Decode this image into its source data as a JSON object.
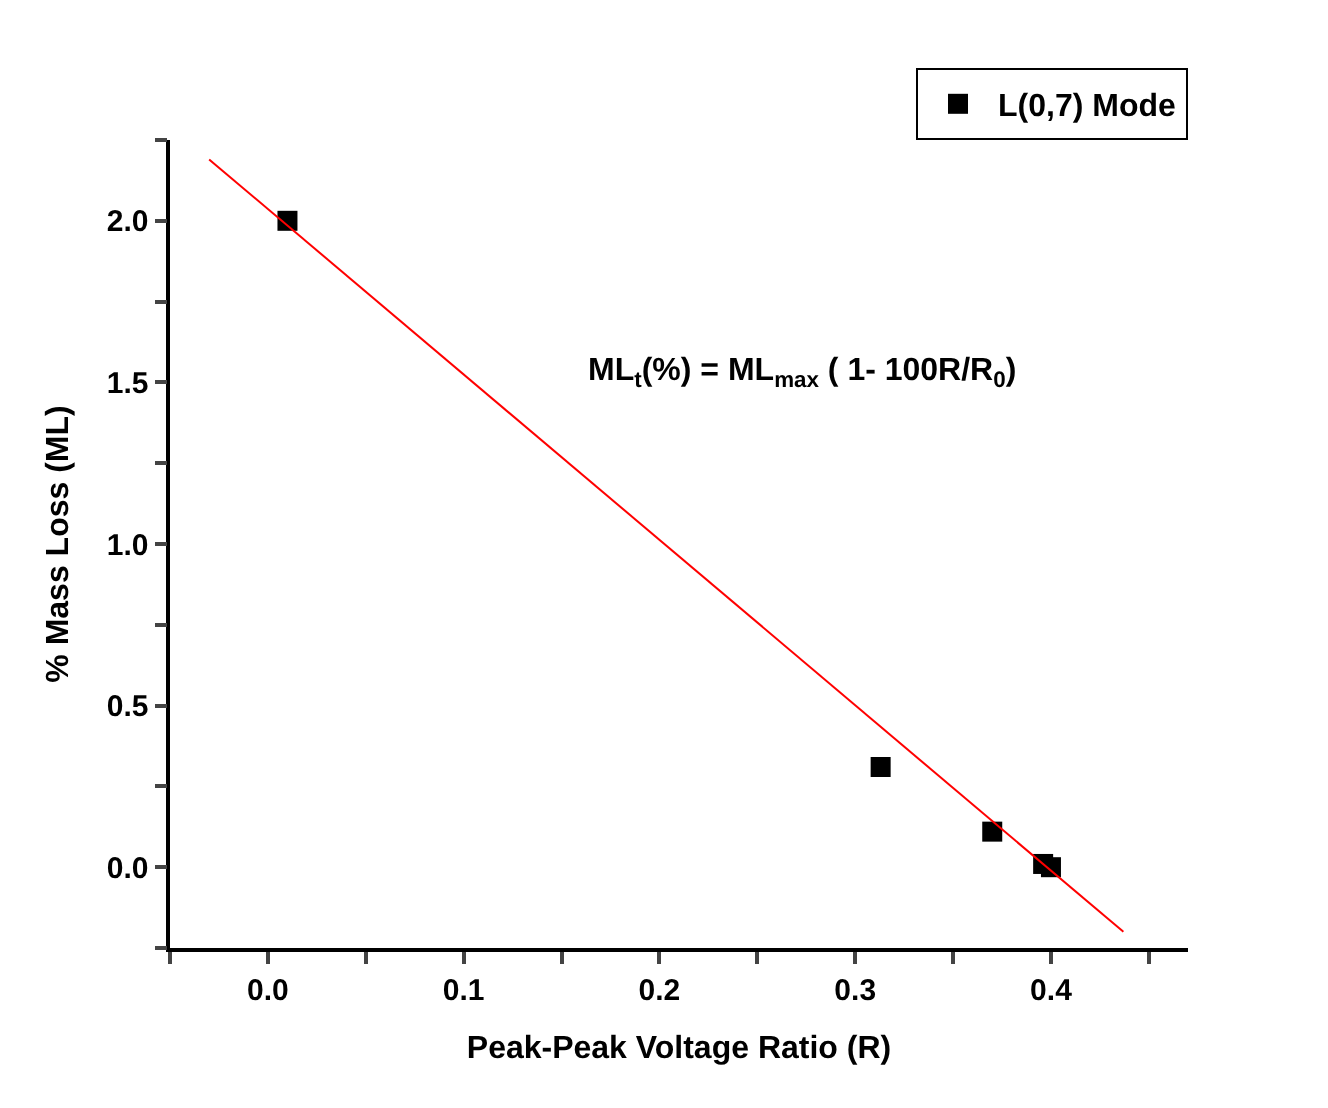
{
  "chart_data": {
    "type": "scatter",
    "xlabel": "Peak-Peak Voltage Ratio (R)",
    "ylabel": "% Mass Loss (ML)",
    "series": [
      {
        "name": "L(0,7) Mode",
        "color": "#000000",
        "marker": "square",
        "x": [
          0.01,
          0.313,
          0.37,
          0.396,
          0.4
        ],
        "values": [
          2.0,
          0.31,
          0.11,
          0.01,
          0.0
        ]
      },
      {
        "color": "#ff0000",
        "type": "line",
        "marker": "none",
        "x": [
          -0.03,
          0.437
        ],
        "values": [
          2.19,
          -0.2
        ]
      }
    ],
    "annotations": [
      "ML$_{t}$(%) = ML$_{max}$ ( 1- 100R/R$_{0}$)"
    ],
    "xlim": [
      -0.05,
      0.47
    ],
    "ylim": [
      -0.25,
      2.25
    ],
    "xticks": [
      {
        "value": -0.05,
        "label": null
      },
      {
        "value": 0,
        "label": "0.0"
      },
      {
        "value": 0.05,
        "label": null
      },
      0.1,
      {
        "value": 0.15,
        "label": null
      },
      0.2,
      {
        "value": 0.25,
        "label": null
      },
      0.3,
      {
        "value": 0.35,
        "label": null
      },
      0.4,
      {
        "value": 0.45,
        "label": null
      }
    ],
    "yticks": [
      {
        "value": -0.25,
        "label": null
      },
      {
        "value": 0,
        "label": "0.0"
      },
      {
        "value": 0.25,
        "label": null
      },
      0.5,
      {
        "value": 0.75,
        "label": null
      },
      {
        "value": 1,
        "label": "1.0"
      },
      {
        "value": 1.25,
        "label": null
      },
      1.5,
      {
        "value": 1.75,
        "label": null
      },
      {
        "value": 2,
        "label": "2.0"
      },
      {
        "value": 2.25,
        "label": null
      }
    ],
    "legend": "top right"
  }
}
